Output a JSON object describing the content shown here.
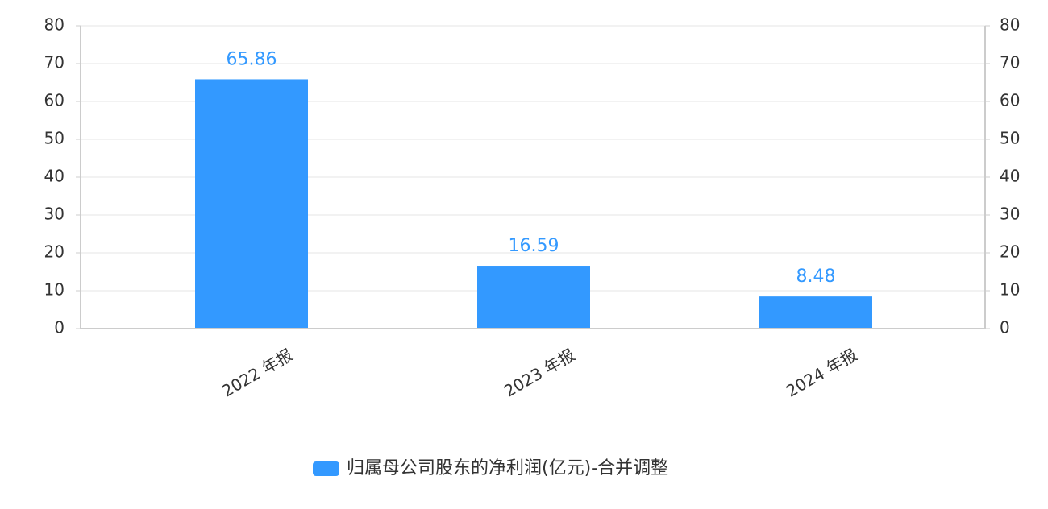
{
  "chart_data": {
    "type": "bar",
    "categories": [
      "2022 年报",
      "2023 年报",
      "2024 年报"
    ],
    "series": [
      {
        "name": "归属母公司股东的净利润(亿元)-合并调整",
        "color": "#3399ff",
        "values": [
          65.86,
          16.59,
          8.48
        ]
      }
    ],
    "ylim": [
      0,
      80
    ],
    "yticks": [
      0,
      10,
      20,
      30,
      40,
      50,
      60,
      70,
      80
    ],
    "y2lim": [
      0,
      80
    ],
    "y2ticks": [
      0,
      10,
      20,
      30,
      40,
      50,
      60,
      70,
      80
    ],
    "grid": true,
    "legend": "bottom"
  }
}
